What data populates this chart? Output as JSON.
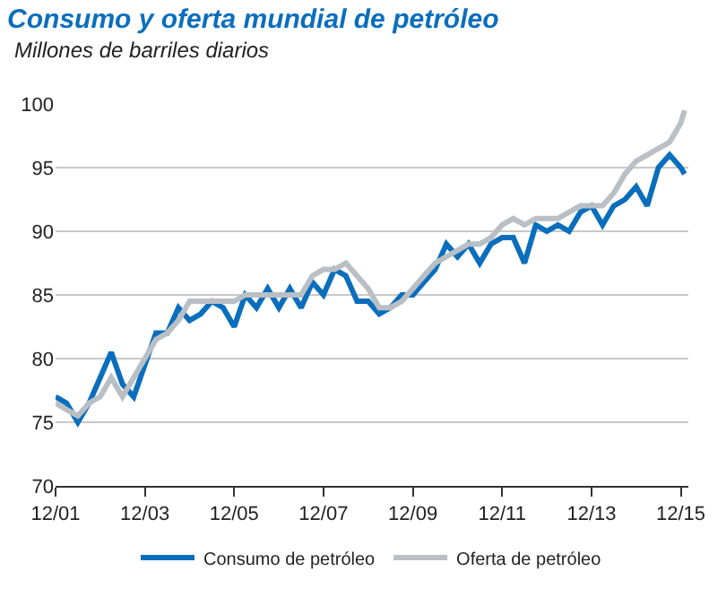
{
  "chart_data": {
    "type": "line",
    "title": "Consumo y oferta mundial de petróleo",
    "subtitle": "Millones de barriles diarios",
    "x": [
      "2001-12",
      "2002-03",
      "2002-06",
      "2002-09",
      "2002-12",
      "2003-03",
      "2003-06",
      "2003-09",
      "2003-12",
      "2004-03",
      "2004-06",
      "2004-09",
      "2004-12",
      "2005-03",
      "2005-06",
      "2005-09",
      "2005-12",
      "2006-03",
      "2006-06",
      "2006-09",
      "2006-12",
      "2007-03",
      "2007-06",
      "2007-09",
      "2007-12",
      "2008-03",
      "2008-06",
      "2008-09",
      "2008-12",
      "2009-03",
      "2009-06",
      "2009-09",
      "2009-12",
      "2010-03",
      "2010-06",
      "2010-09",
      "2010-12",
      "2011-03",
      "2011-06",
      "2011-09",
      "2011-12",
      "2012-03",
      "2012-06",
      "2012-09",
      "2012-12",
      "2013-03",
      "2013-06",
      "2013-09",
      "2013-12",
      "2014-03",
      "2014-06",
      "2014-09",
      "2014-12",
      "2015-03",
      "2015-06",
      "2015-09",
      "2015-12",
      "2016-01"
    ],
    "series": [
      {
        "name": "Consumo de petróleo",
        "color": "#0a6ebd",
        "values": [
          77,
          76.5,
          75,
          76.5,
          78.5,
          80.5,
          78,
          77,
          79.5,
          82,
          82,
          84,
          83,
          83.5,
          84.5,
          84,
          82.5,
          85,
          84,
          85.5,
          84,
          85.5,
          84,
          86,
          85,
          87,
          86.5,
          84.5,
          84.5,
          83.5,
          84,
          85,
          85,
          86,
          87,
          89,
          88,
          89,
          87.5,
          89,
          89.5,
          89.5,
          87.5,
          90.5,
          90,
          90.5,
          90,
          91.5,
          92,
          90.5,
          92,
          92.5,
          93.5,
          92,
          95,
          96,
          95,
          94.5
        ]
      },
      {
        "name": "Oferta de petróleo",
        "color": "#b9bfc4",
        "values": [
          76.5,
          76,
          75.5,
          76.5,
          77,
          78.5,
          77,
          78.5,
          80,
          81.5,
          82,
          83,
          84.5,
          84.5,
          84.5,
          84.5,
          84.5,
          85,
          85,
          85,
          85,
          85,
          85,
          86.5,
          87,
          87,
          87.5,
          86.5,
          85.5,
          84,
          84,
          84.5,
          85.5,
          86.5,
          87.5,
          88,
          88.5,
          89,
          89,
          89.5,
          90.5,
          91,
          90.5,
          91,
          91,
          91,
          91.5,
          92,
          92,
          92,
          93,
          94.5,
          95.5,
          96,
          96.5,
          97,
          98.5,
          99.5
        ]
      }
    ],
    "xlim": [
      "2001-12",
      "2016-02"
    ],
    "xticks": [
      {
        "value": "2001-12",
        "label": "12/01"
      },
      {
        "value": "2003-12",
        "label": "12/03"
      },
      {
        "value": "2005-12",
        "label": "12/05"
      },
      {
        "value": "2007-12",
        "label": "12/07"
      },
      {
        "value": "2009-12",
        "label": "12/09"
      },
      {
        "value": "2011-12",
        "label": "12/11"
      },
      {
        "value": "2013-12",
        "label": "12/13"
      },
      {
        "value": "2015-12",
        "label": "12/15"
      }
    ],
    "ylim": [
      70,
      100
    ],
    "yticks": [
      70,
      75,
      80,
      85,
      90,
      95,
      100
    ],
    "grid": "y",
    "legend": "bottom",
    "marker": "none",
    "line_style": "solid"
  }
}
